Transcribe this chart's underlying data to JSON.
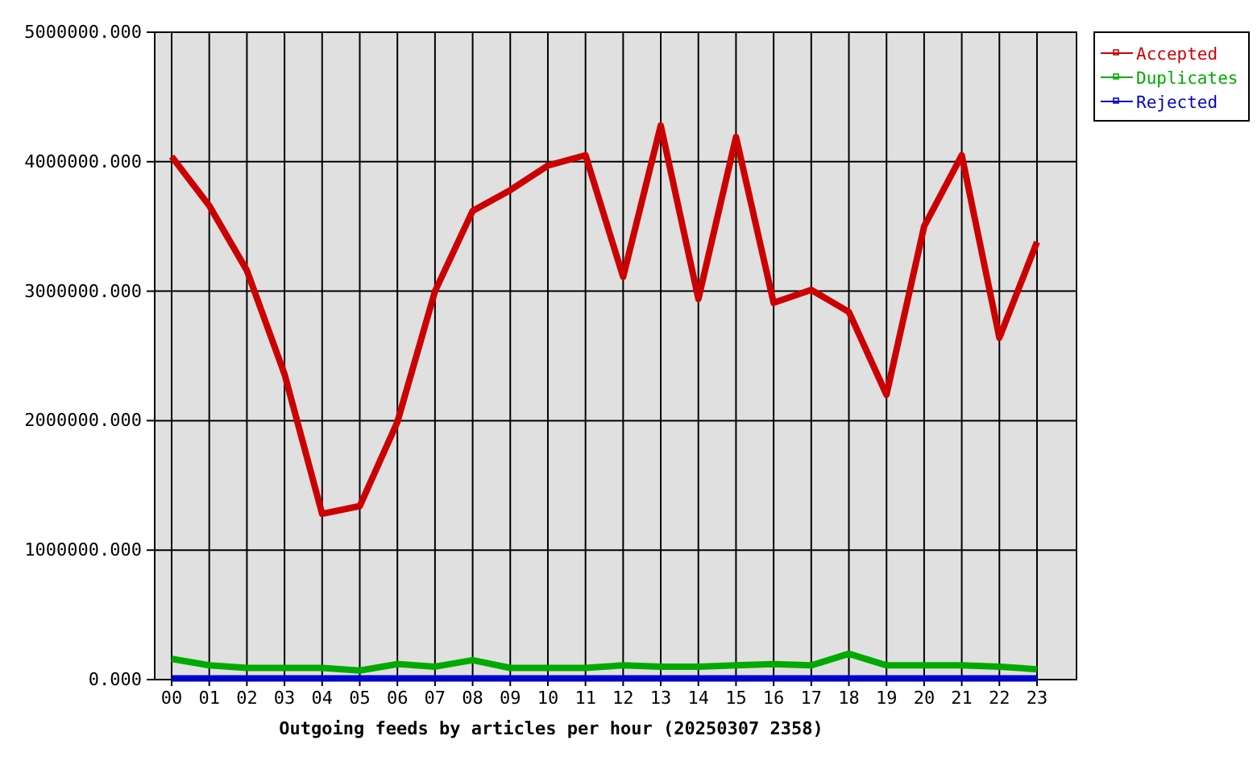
{
  "chart_data": {
    "type": "line",
    "xlabel": "Outgoing feeds by articles per hour (20250307 2358)",
    "categories": [
      "00",
      "01",
      "02",
      "03",
      "04",
      "05",
      "06",
      "07",
      "08",
      "09",
      "10",
      "11",
      "12",
      "13",
      "14",
      "15",
      "16",
      "17",
      "18",
      "19",
      "20",
      "21",
      "22",
      "23"
    ],
    "series": [
      {
        "name": "Accepted",
        "color": "#cc0000",
        "values": [
          4040000,
          3660000,
          3160000,
          2360000,
          1280000,
          1340000,
          1990000,
          3000000,
          3620000,
          3780000,
          3970000,
          4050000,
          3110000,
          4280000,
          2940000,
          4190000,
          2910000,
          3010000,
          2840000,
          2200000,
          3500000,
          4050000,
          2640000,
          3380000
        ]
      },
      {
        "name": "Duplicates",
        "color": "#00aa00",
        "values": [
          160000,
          110000,
          90000,
          90000,
          90000,
          70000,
          120000,
          100000,
          150000,
          90000,
          90000,
          90000,
          110000,
          100000,
          100000,
          110000,
          120000,
          110000,
          200000,
          110000,
          110000,
          110000,
          100000,
          80000
        ]
      },
      {
        "name": "Rejected",
        "color": "#0000cc",
        "values": [
          10000,
          10000,
          10000,
          10000,
          10000,
          10000,
          10000,
          10000,
          10000,
          10000,
          10000,
          10000,
          10000,
          10000,
          10000,
          10000,
          10000,
          10000,
          10000,
          10000,
          10000,
          10000,
          10000,
          10000
        ]
      }
    ],
    "ylim": [
      0,
      5000000
    ],
    "yticks": [
      {
        "value": 0,
        "label": "0.000"
      },
      {
        "value": 1000000,
        "label": "1000000.000"
      },
      {
        "value": 2000000,
        "label": "2000000.000"
      },
      {
        "value": 3000000,
        "label": "3000000.000"
      },
      {
        "value": 4000000,
        "label": "4000000.000"
      },
      {
        "value": 5000000,
        "label": "5000000.000"
      }
    ],
    "grid": true,
    "legend": "top right",
    "line_style": "solid"
  }
}
